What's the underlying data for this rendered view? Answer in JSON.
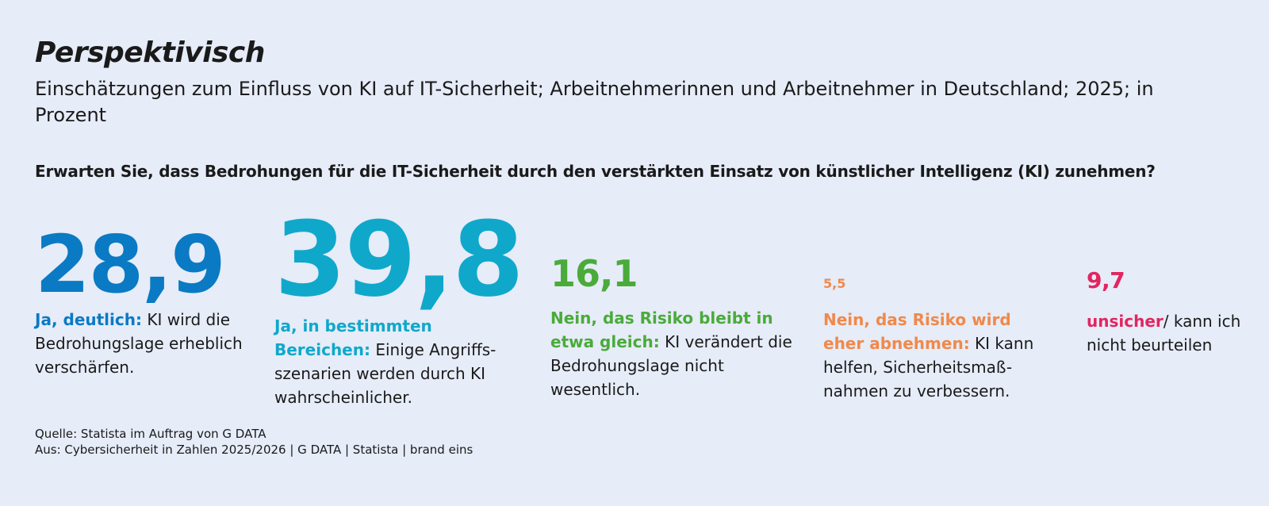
{
  "title": "Perspektivisch",
  "subtitle": "Einschätzungen zum Einfluss von KI auf IT-Sicherheit; Arbeitnehmerinnen und Arbeitnehmer in Deutschland; 2025; in Prozent",
  "question": "Erwarten Sie, dass Bedrohungen für die IT-Sicherheit durch den verstärkten Einsatz von künstlicher Intelligenz (KI) zunehmen?",
  "chart_data": {
    "type": "bar",
    "unit": "Prozent",
    "categories": [
      "Ja, deutlich",
      "Ja, in bestimmten Bereichen",
      "Nein, das Risiko bleibt in etwa gleich",
      "Nein, das Risiko wird eher abnehmen",
      "unsicher/kann ich nicht beurteilen"
    ],
    "values": [
      28.9,
      39.8,
      16.1,
      5.5,
      9.7
    ],
    "items": [
      {
        "value_label": "28,9",
        "lead": "Ja, deutlich:",
        "text": " KI wird die Bedrohungslage erheblich verschärfen.",
        "color": "#0a7ac4"
      },
      {
        "value_label": "39,8",
        "lead": "Ja, in bestimmten Bereichen:",
        "text": " Einige Angriffs-szenarien werden durch KI wahrscheinlicher.",
        "color": "#0fa8cb"
      },
      {
        "value_label": "16,1",
        "lead": "Nein, das Risiko bleibt in etwa gleich:",
        "text": " KI verändert die Bedrohungslage nicht wesentlich.",
        "color": "#4aab3a"
      },
      {
        "value_label": "5,5",
        "lead": "Nein, das Risiko wird eher abnehmen:",
        "text": " KI kann helfen, Sicherheitsmaß-nahmen zu verbessern.",
        "color": "#f0894a"
      },
      {
        "value_label": "9,7",
        "lead": "unsicher",
        "text": "/ kann ich nicht beurteilen",
        "color": "#e2255f"
      }
    ]
  },
  "source": {
    "line1": "Quelle: Statista im Auftrag von G DATA",
    "line2": "Aus: Cybersicherheit in Zahlen 2025/2026 | G DATA | Statista | brand eins"
  }
}
